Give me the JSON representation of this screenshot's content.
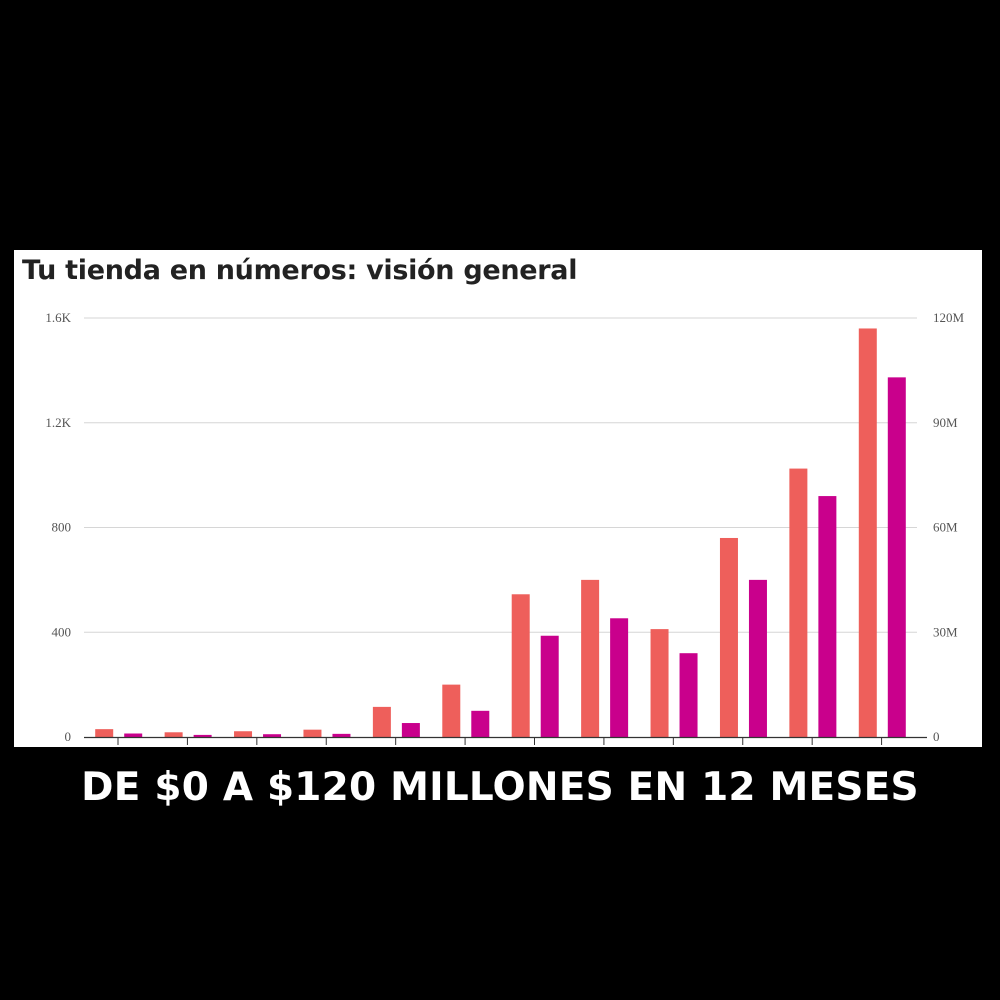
{
  "chart_title": "Tu tienda en números: visión general",
  "headline": "DE $0 A $120 MILLONES EN 12 MESES",
  "chart_data": {
    "type": "bar",
    "title": "Tu tienda en números: visión general",
    "categories": [
      "",
      "",
      "",
      "",
      "",
      "",
      "",
      "",
      "",
      "",
      "",
      ""
    ],
    "series": [
      {
        "values": [
          30,
          18,
          22,
          28,
          115,
          200,
          545,
          600,
          412,
          760,
          1025,
          1560
        ],
        "color": "#ee5f5b",
        "axis": "left"
      },
      {
        "values": [
          1.0,
          0.6,
          0.8,
          0.9,
          4.0,
          7.5,
          29,
          34,
          24,
          45,
          69,
          103
        ],
        "color": "#c9008c",
        "axis": "right"
      }
    ],
    "y_left": {
      "ylim": [
        0,
        1600
      ],
      "ticks": [
        0,
        400,
        800,
        1200,
        1600
      ],
      "tick_labels": [
        "0",
        "400",
        "800",
        "1.2K",
        "1.6K"
      ]
    },
    "y_right": {
      "ylim": [
        0,
        120
      ],
      "ticks": [
        0,
        30,
        60,
        90,
        120
      ],
      "tick_labels": [
        "0",
        "30M",
        "60M",
        "90M",
        "120M"
      ]
    },
    "grid": true,
    "legend": "none"
  }
}
